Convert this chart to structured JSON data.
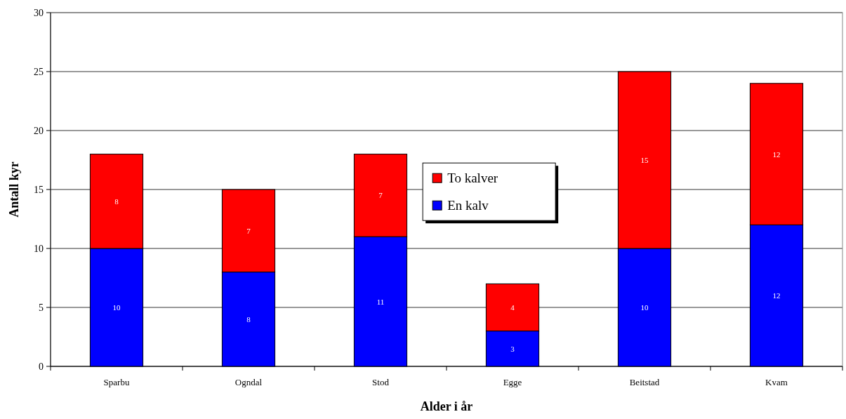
{
  "chart_data": {
    "type": "bar",
    "stacked": true,
    "xlabel": "Alder i år",
    "ylabel": "Antall kyr",
    "categories": [
      "Sparbu",
      "Ogndal",
      "Stod",
      "Egge",
      "Beitstad",
      "Kvam"
    ],
    "series": [
      {
        "name": "En kalv",
        "color": "#0000ff",
        "values": [
          10,
          8,
          11,
          3,
          10,
          12
        ]
      },
      {
        "name": "To kalver",
        "color": "#ff0000",
        "values": [
          8,
          7,
          7,
          4,
          15,
          12
        ]
      }
    ],
    "ylim": [
      0,
      30
    ],
    "yticks": [
      0,
      5,
      10,
      15,
      20,
      25,
      30
    ],
    "grid": "y",
    "legend": "center",
    "data_labels": true
  }
}
